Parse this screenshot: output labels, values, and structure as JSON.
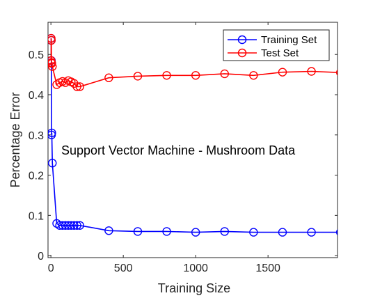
{
  "chart_data": {
    "type": "line",
    "title": "",
    "annotation": "Support Vector Machine - Mushroom Data",
    "xlabel": "Training Size",
    "ylabel": "Percentage Error",
    "xlim": [
      -20,
      1980
    ],
    "ylim": [
      -0.005,
      0.58
    ],
    "xticks": [
      0,
      500,
      1000,
      1500
    ],
    "yticks": [
      0,
      0.1,
      0.2,
      0.3,
      0.4,
      0.5
    ],
    "xtick_labels": [
      "0",
      "500",
      "1000",
      "1500"
    ],
    "ytick_labels": [
      "0",
      "0.1",
      "0.2",
      "0.3",
      "0.4",
      "0.5"
    ],
    "grid": false,
    "legend_position": "top-right",
    "series": [
      {
        "name": "Training Set",
        "color": "#0000ff",
        "x": [
          1,
          2,
          3,
          4,
          6,
          10,
          40,
          60,
          80,
          100,
          120,
          140,
          160,
          180,
          200,
          400,
          600,
          800,
          1000,
          1200,
          1400,
          1600,
          1800,
          2000
        ],
        "y": [
          0.54,
          0.535,
          0.485,
          0.3,
          0.305,
          0.23,
          0.08,
          0.075,
          0.075,
          0.075,
          0.075,
          0.075,
          0.075,
          0.075,
          0.075,
          0.062,
          0.06,
          0.06,
          0.058,
          0.06,
          0.058,
          0.058,
          0.058,
          0.058
        ]
      },
      {
        "name": "Test Set",
        "color": "#ff0000",
        "x": [
          1,
          2,
          3,
          4,
          6,
          10,
          40,
          60,
          80,
          100,
          120,
          140,
          160,
          180,
          200,
          400,
          600,
          800,
          1000,
          1200,
          1400,
          1600,
          1800,
          2000
        ],
        "y": [
          0.485,
          0.54,
          0.535,
          0.48,
          0.478,
          0.47,
          0.425,
          0.43,
          0.433,
          0.43,
          0.435,
          0.432,
          0.428,
          0.42,
          0.42,
          0.442,
          0.446,
          0.448,
          0.448,
          0.452,
          0.448,
          0.456,
          0.458,
          0.455
        ]
      }
    ]
  }
}
